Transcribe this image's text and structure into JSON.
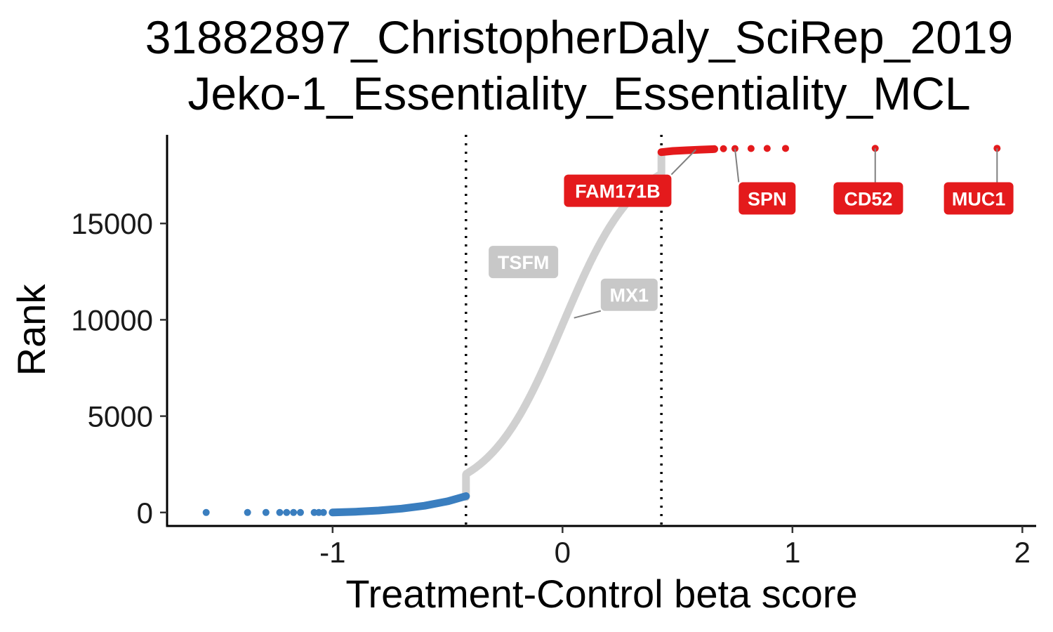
{
  "chart_data": {
    "type": "scatter",
    "title_lines": [
      "31882897_ChristopherDaly_SciRep_2019",
      "Jeko-1_Essentiality_Essentiality_MCL"
    ],
    "xlabel": "Treatment-Control beta score",
    "ylabel": "Rank",
    "xlim": [
      -1.72,
      2.06
    ],
    "ylim": [
      -700,
      19600
    ],
    "x_ticks": [
      {
        "value": -1,
        "label": "-1"
      },
      {
        "value": 0,
        "label": "0"
      },
      {
        "value": 1,
        "label": "1"
      },
      {
        "value": 2,
        "label": "2"
      }
    ],
    "y_ticks": [
      {
        "value": 0,
        "label": "0"
      },
      {
        "value": 5000,
        "label": "5000"
      },
      {
        "value": 10000,
        "label": "10000"
      },
      {
        "value": 15000,
        "label": "15000"
      }
    ],
    "thresholds": [
      -0.42,
      0.43
    ],
    "grid": false,
    "legend": "none",
    "total_genes": 18900,
    "colors": {
      "depleted": "#3a7ebf",
      "neutral": "#d0d0d0",
      "enriched": "#e41a1c",
      "neutral_label_bg": "#c8c8c8",
      "axis": "#000000"
    },
    "neutral_curve": {
      "rank_range": [
        800,
        18700
      ],
      "midpoint_x": 0.0,
      "scale": 0.16
    },
    "depleted_points": {
      "individual": [
        {
          "x": -1.55,
          "y": 0
        },
        {
          "x": -1.37,
          "y": 0
        },
        {
          "x": -1.29,
          "y": 0
        },
        {
          "x": -1.23,
          "y": 0
        },
        {
          "x": -1.2,
          "y": 0
        },
        {
          "x": -1.17,
          "y": 0
        },
        {
          "x": -1.14,
          "y": 0
        },
        {
          "x": -1.08,
          "y": 0
        },
        {
          "x": -1.06,
          "y": 0
        },
        {
          "x": -1.04,
          "y": 0
        }
      ],
      "tail_curve": [
        [
          -1.0,
          0
        ],
        [
          -0.9,
          40
        ],
        [
          -0.8,
          100
        ],
        [
          -0.7,
          200
        ],
        [
          -0.6,
          350
        ],
        [
          -0.5,
          580
        ],
        [
          -0.42,
          850
        ]
      ]
    },
    "enriched_points": {
      "individual": [
        {
          "x": 0.7,
          "y": 18880
        },
        {
          "x": 0.75,
          "y": 18885
        },
        {
          "x": 0.82,
          "y": 18890
        },
        {
          "x": 0.89,
          "y": 18893
        },
        {
          "x": 0.97,
          "y": 18896
        },
        {
          "x": 1.36,
          "y": 18898
        },
        {
          "x": 1.89,
          "y": 18900
        }
      ],
      "head_curve": [
        [
          0.43,
          18700
        ],
        [
          0.48,
          18760
        ],
        [
          0.54,
          18800
        ],
        [
          0.6,
          18830
        ],
        [
          0.66,
          18860
        ]
      ]
    },
    "labels": [
      {
        "text": "FAM171B",
        "kind": "enriched",
        "point": {
          "x": 0.58,
          "y": 18830
        },
        "box": {
          "x": 0.24,
          "y": 16700
        }
      },
      {
        "text": "SPN",
        "kind": "enriched",
        "point": {
          "x": 0.75,
          "y": 18885
        },
        "box": {
          "x": 0.89,
          "y": 16300
        }
      },
      {
        "text": "CD52",
        "kind": "enriched",
        "point": {
          "x": 1.36,
          "y": 18898
        },
        "box": {
          "x": 1.33,
          "y": 16300
        }
      },
      {
        "text": "MUC1",
        "kind": "enriched",
        "point": {
          "x": 1.89,
          "y": 18900
        },
        "box": {
          "x": 1.81,
          "y": 16300
        }
      },
      {
        "text": "TSFM",
        "kind": "neutral",
        "point": null,
        "box": {
          "x": -0.17,
          "y": 13000
        }
      },
      {
        "text": "MX1",
        "kind": "neutral",
        "point": {
          "x": 0.05,
          "y": 10100
        },
        "box": {
          "x": 0.29,
          "y": 11300
        }
      }
    ]
  }
}
